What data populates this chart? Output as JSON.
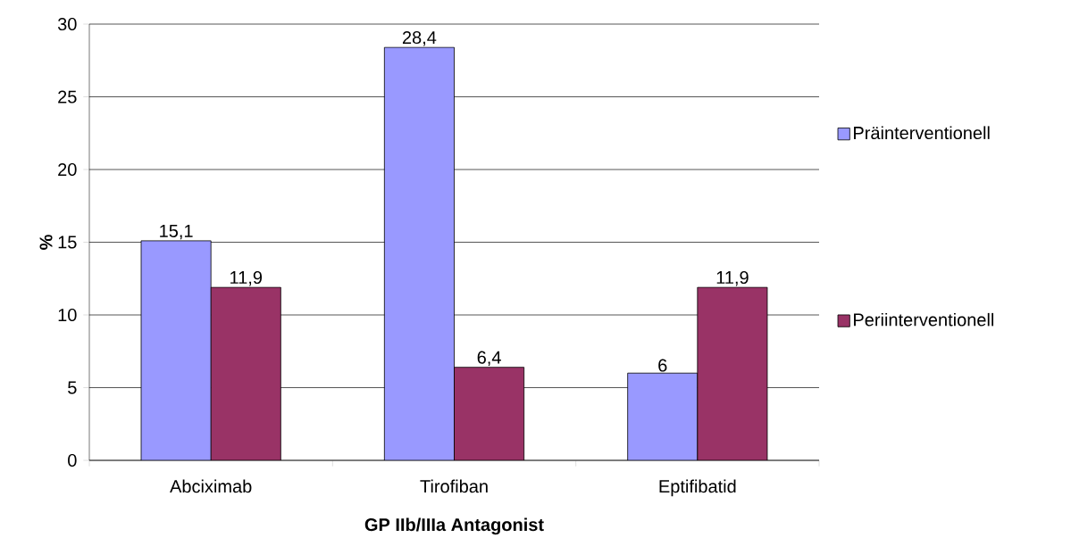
{
  "chart_data": {
    "type": "bar",
    "xlabel": "GP IIb/IIIa Antagonist",
    "ylabel": "%",
    "categories": [
      "Abciximab",
      "Tirofiban",
      "Eptifibatid"
    ],
    "series": [
      {
        "name": "Präinterventionell",
        "color": "#9999ff",
        "values": [
          15.1,
          28.4,
          6
        ],
        "value_labels": [
          "15,1",
          "28,4",
          "6"
        ]
      },
      {
        "name": "Periinterventionell",
        "color": "#993366",
        "values": [
          11.9,
          6.4,
          11.9
        ],
        "value_labels": [
          "11,9",
          "6,4",
          "11,9"
        ]
      }
    ],
    "ylim": [
      0,
      30
    ],
    "yticks": [
      0,
      5,
      10,
      15,
      20,
      25,
      30
    ],
    "grid": "y",
    "legend": "right"
  }
}
